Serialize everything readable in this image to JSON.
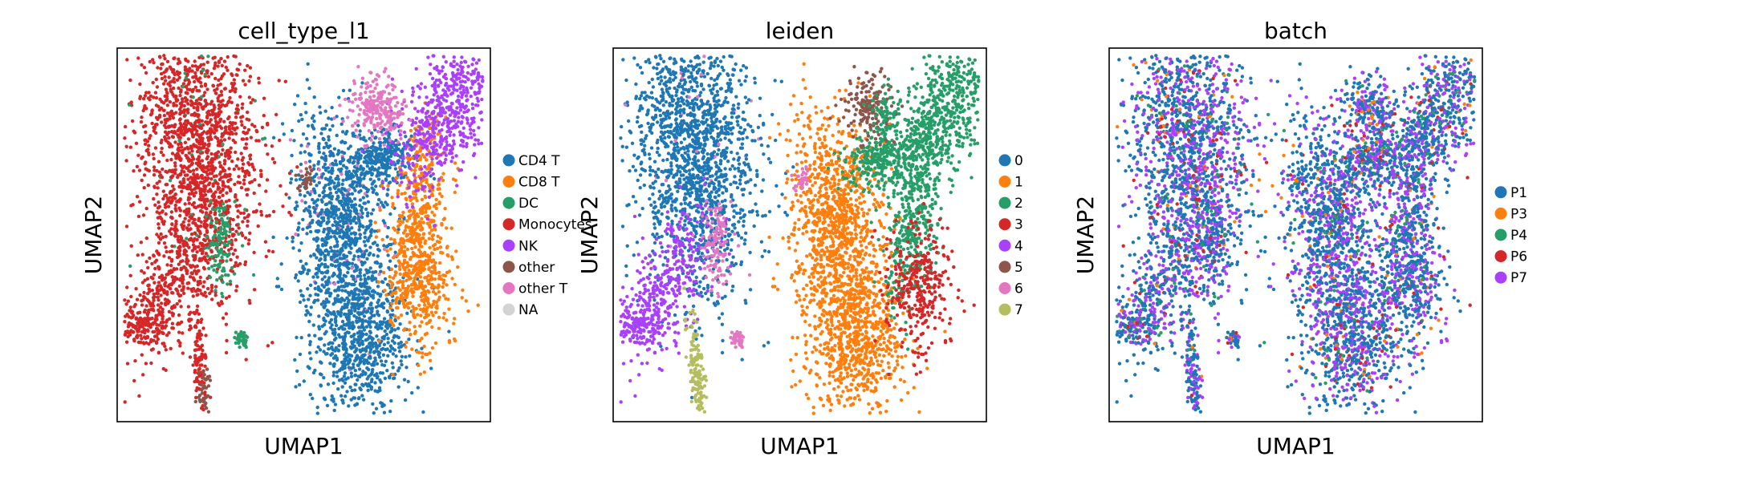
{
  "chart_data": [
    {
      "type": "scatter",
      "title": "cell_type_l1",
      "xlabel": "UMAP1",
      "ylabel": "UMAP2",
      "legend": "right",
      "grid": false,
      "categories": [
        {
          "label": "CD4 T",
          "color": "#1f77b4"
        },
        {
          "label": "CD8 T",
          "color": "#ff7f0e"
        },
        {
          "label": "DC",
          "color": "#279e68"
        },
        {
          "label": "Monocytes",
          "color": "#d62728"
        },
        {
          "label": "NK",
          "color": "#aa40fc"
        },
        {
          "label": "other",
          "color": "#8c564b"
        },
        {
          "label": "other T",
          "color": "#e377c2"
        },
        {
          "label": "NA",
          "color": "#d3d3d3"
        }
      ]
    },
    {
      "type": "scatter",
      "title": "leiden",
      "xlabel": "UMAP1",
      "ylabel": "UMAP2",
      "legend": "right",
      "grid": false,
      "categories": [
        {
          "label": "0",
          "color": "#1f77b4"
        },
        {
          "label": "1",
          "color": "#ff7f0e"
        },
        {
          "label": "2",
          "color": "#279e68"
        },
        {
          "label": "3",
          "color": "#d62728"
        },
        {
          "label": "4",
          "color": "#aa40fc"
        },
        {
          "label": "5",
          "color": "#8c564b"
        },
        {
          "label": "6",
          "color": "#e377c2"
        },
        {
          "label": "7",
          "color": "#b5bd61"
        }
      ]
    },
    {
      "type": "scatter",
      "title": "batch",
      "xlabel": "UMAP1",
      "ylabel": "UMAP2",
      "legend": "right",
      "grid": false,
      "categories": [
        {
          "label": "P1",
          "color": "#1f77b4"
        },
        {
          "label": "P3",
          "color": "#ff7f0e"
        },
        {
          "label": "P4",
          "color": "#279e68"
        },
        {
          "label": "P6",
          "color": "#d62728"
        },
        {
          "label": "P7",
          "color": "#aa40fc"
        }
      ]
    }
  ]
}
